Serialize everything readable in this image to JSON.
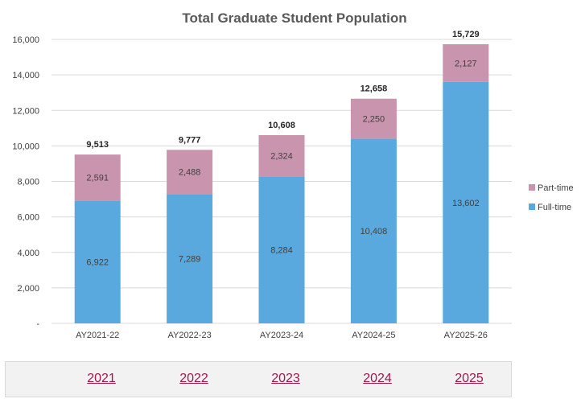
{
  "chart_data": {
    "type": "bar",
    "stacked": true,
    "title": "Total Graduate Student Population",
    "categories": [
      "AY2021-22",
      "AY2022-23",
      "AY2023-24",
      "AY2024-25",
      "AY2025-26"
    ],
    "series": [
      {
        "name": "Full-time",
        "values": [
          6922,
          7289,
          8284,
          10408,
          13602
        ],
        "labels": [
          "6,922",
          "7,289",
          "8,284",
          "10,408",
          "13,602"
        ],
        "color": "#5aa9de"
      },
      {
        "name": "Part-time",
        "values": [
          2591,
          2488,
          2324,
          2250,
          2127
        ],
        "labels": [
          "2,591",
          "2,488",
          "2,324",
          "2,250",
          "2,127"
        ],
        "color": "#c995ae"
      }
    ],
    "totals": [
      9513,
      9777,
      10608,
      12658,
      15729
    ],
    "total_labels": [
      "9,513",
      "9,777",
      "10,608",
      "12,658",
      "15,729"
    ],
    "ylim": [
      0,
      16000
    ],
    "y_ticks": [
      0,
      2000,
      4000,
      6000,
      8000,
      10000,
      12000,
      14000,
      16000
    ],
    "y_tick_labels": [
      "-",
      "2,000",
      "4,000",
      "6,000",
      "8,000",
      "10,000",
      "12,000",
      "14,000",
      "16,000"
    ],
    "legend": [
      {
        "name": "Part-time",
        "color": "#c995ae"
      },
      {
        "name": "Full-time",
        "color": "#5aa9de"
      }
    ],
    "legend_position": "right",
    "grid": true
  },
  "year_nav": {
    "links": [
      "2021",
      "2022",
      "2023",
      "2024",
      "2025"
    ]
  }
}
